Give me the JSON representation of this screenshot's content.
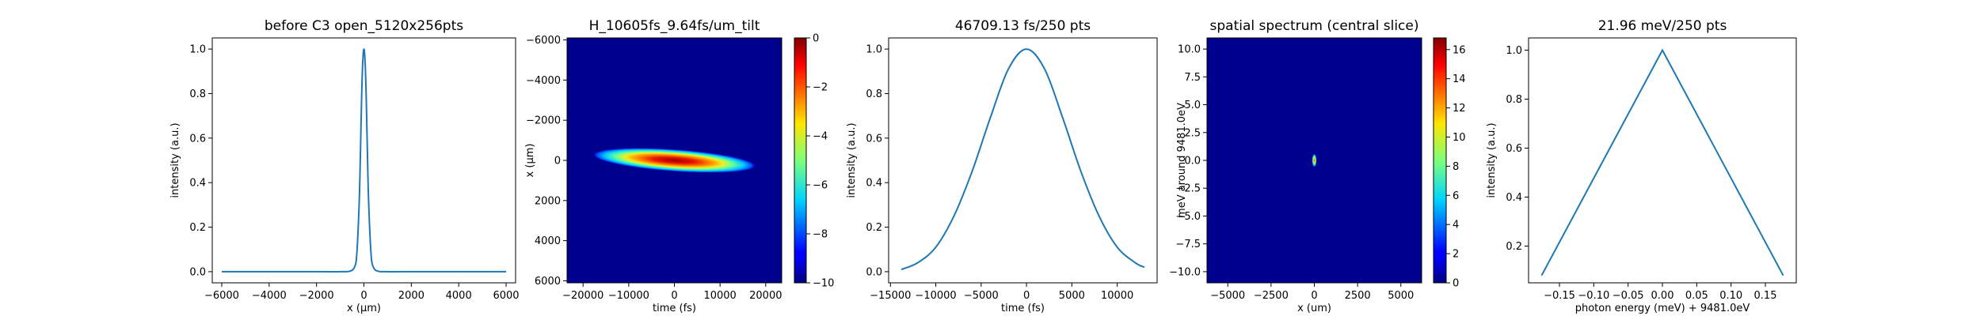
{
  "chart_data": [
    {
      "type": "line",
      "title": "before C3 open_5120x256pts",
      "xlabel": "x (μm)",
      "ylabel": "intensity (a.u.)",
      "xlim": [
        -6400,
        6400
      ],
      "ylim": [
        -0.05,
        1.05
      ],
      "xticks": [
        -6000,
        -4000,
        -2000,
        0,
        2000,
        4000,
        6000
      ],
      "xtick_labels": [
        "−6000",
        "−4000",
        "−2000",
        "0",
        "2000",
        "4000",
        "6000"
      ],
      "yticks": [
        0.0,
        0.2,
        0.4,
        0.6,
        0.8,
        1.0
      ],
      "ytick_labels": [
        "0.0",
        "0.2",
        "0.4",
        "0.6",
        "0.8",
        "1.0"
      ],
      "series": [
        {
          "color": "#1f77b4",
          "x": [
            -6000,
            -2000,
            -1000,
            -600,
            -400,
            -300,
            -200,
            -150,
            -100,
            -50,
            0,
            50,
            100,
            150,
            200,
            300,
            400,
            600,
            1000,
            2000,
            6000
          ],
          "y": [
            0,
            0,
            0,
            0.002,
            0.02,
            0.08,
            0.31,
            0.52,
            0.77,
            0.94,
            1.0,
            0.94,
            0.77,
            0.52,
            0.31,
            0.08,
            0.02,
            0.002,
            0,
            0,
            0
          ]
        }
      ]
    },
    {
      "type": "heatmap",
      "title": "H_10605fs_9.64fs/um_tilt",
      "xlabel": "time (fs)",
      "ylabel": "x (μm)",
      "xlim": [
        -23500,
        23500
      ],
      "ylim": [
        -6100,
        6100
      ],
      "xticks": [
        -20000,
        -10000,
        0,
        10000,
        20000
      ],
      "xtick_labels": [
        "−20000",
        "−10000",
        "0",
        "10000",
        "20000"
      ],
      "yticks": [
        -6000,
        -4000,
        -2000,
        0,
        2000,
        4000,
        6000
      ],
      "ytick_labels": [
        "−6000",
        "−4000",
        "−2000",
        "0",
        "2000",
        "4000",
        "6000"
      ],
      "y_inverted": true,
      "colormap": "jet",
      "colorbar": {
        "min": -10,
        "max": 0,
        "ticks": [
          0,
          -2,
          -4,
          -6,
          -8,
          -10
        ],
        "tick_labels": [
          "0",
          "−2",
          "−4",
          "−6",
          "−8",
          "−10"
        ]
      },
      "feature": {
        "shape": "tilted ellipse",
        "center": [
          0,
          0
        ],
        "half_width_fs": 18000,
        "half_height_um": 550,
        "peak": 0
      }
    },
    {
      "type": "line",
      "title": "46709.13 fs/250 pts",
      "xlabel": "time (fs)",
      "ylabel": "intensity (a.u.)",
      "xlim": [
        -15200,
        14400
      ],
      "ylim": [
        -0.05,
        1.05
      ],
      "xticks": [
        -15000,
        -10000,
        -5000,
        0,
        5000,
        10000
      ],
      "xtick_labels": [
        "−15000",
        "−10000",
        "−5000",
        "0",
        "5000",
        "10000"
      ],
      "yticks": [
        0.0,
        0.2,
        0.4,
        0.6,
        0.8,
        1.0
      ],
      "ytick_labels": [
        "0.0",
        "0.2",
        "0.4",
        "0.6",
        "0.8",
        "1.0"
      ],
      "series": [
        {
          "color": "#1f77b4",
          "x": [
            -13800,
            -12000,
            -10000,
            -8000,
            -6000,
            -4000,
            -2000,
            0,
            2000,
            4000,
            6000,
            8000,
            10000,
            12000,
            13000
          ],
          "y": [
            0.01,
            0.04,
            0.11,
            0.25,
            0.45,
            0.69,
            0.91,
            1.0,
            0.91,
            0.69,
            0.45,
            0.25,
            0.11,
            0.04,
            0.02
          ]
        }
      ]
    },
    {
      "type": "heatmap",
      "title": "spatial spectrum (central slice)",
      "xlabel": "x (um)",
      "ylabel": "meV around 9481.0eV",
      "xlim": [
        -6200,
        6200
      ],
      "ylim": [
        -11,
        11
      ],
      "xticks": [
        -5000,
        -2500,
        0,
        2500,
        5000
      ],
      "xtick_labels": [
        "−5000",
        "−2500",
        "0",
        "2500",
        "5000"
      ],
      "yticks": [
        10.0,
        7.5,
        5.0,
        2.5,
        0.0,
        -2.5,
        -5.0,
        -7.5,
        -10.0
      ],
      "ytick_labels": [
        "10.0",
        "7.5",
        "5.0",
        "2.5",
        "0.0",
        "−2.5",
        "−5.0",
        "−7.5",
        "−10.0"
      ],
      "colormap": "jet",
      "colorbar": {
        "min": 0,
        "max": 16.8,
        "ticks": [
          0,
          2,
          4,
          6,
          8,
          10,
          12,
          14,
          16
        ],
        "tick_labels": [
          "0",
          "2",
          "4",
          "6",
          "8",
          "10",
          "12",
          "14",
          "16"
        ]
      },
      "feature": {
        "shape": "small spot",
        "center": [
          0,
          0
        ],
        "half_width_um": 90,
        "half_height_meV": 0.6,
        "peak": 16.8
      }
    },
    {
      "type": "line",
      "title": "21.96 meV/250 pts",
      "xlabel": "photon energy (meV) + 9481.0eV",
      "ylabel": "intensity (a.u.)",
      "xlim": [
        -0.195,
        0.195
      ],
      "ylim": [
        0.05,
        1.05
      ],
      "xticks": [
        -0.15,
        -0.1,
        -0.05,
        0.0,
        0.05,
        0.1,
        0.15
      ],
      "xtick_labels": [
        "−0.15",
        "−0.10",
        "−0.05",
        "0.00",
        "0.05",
        "0.10",
        "0.15"
      ],
      "yticks": [
        0.2,
        0.4,
        0.6,
        0.8,
        1.0
      ],
      "ytick_labels": [
        "0.2",
        "0.4",
        "0.6",
        "0.8",
        "1.0"
      ],
      "series": [
        {
          "color": "#1f77b4",
          "x": [
            -0.176,
            0.0,
            0.176
          ],
          "y": [
            0.08,
            1.0,
            0.08
          ]
        }
      ]
    }
  ]
}
